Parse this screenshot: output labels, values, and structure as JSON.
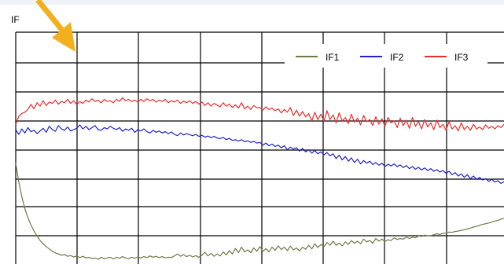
{
  "chart_data": {
    "type": "line",
    "ylabel": "IF",
    "grid": true,
    "legend_position": "top-right",
    "x": [
      0,
      1,
      2,
      3,
      4,
      5,
      6,
      7,
      8,
      9,
      10,
      11,
      12,
      13,
      14,
      15,
      16,
      17,
      18,
      19,
      20,
      21,
      22,
      23,
      24,
      25,
      26,
      27,
      28,
      29,
      30,
      31,
      32,
      33,
      34,
      35,
      36,
      37,
      38,
      39,
      40,
      41,
      42,
      43,
      44,
      45,
      46,
      47,
      48,
      49,
      50,
      51,
      52,
      53,
      54,
      55,
      56,
      57,
      58,
      59,
      60,
      61,
      62,
      63,
      64,
      65,
      66,
      67,
      68,
      69,
      70,
      71,
      72,
      73,
      74,
      75,
      76,
      77,
      78,
      79,
      80,
      81,
      82,
      83,
      84,
      85,
      86,
      87,
      88,
      89,
      90,
      91,
      92,
      93,
      94,
      95,
      96,
      97,
      98,
      99,
      100,
      101,
      102,
      103,
      104,
      105,
      106,
      107,
      108,
      109,
      110,
      111,
      112,
      113,
      114,
      115,
      116,
      117,
      118,
      119,
      120,
      121,
      122,
      123,
      124,
      125,
      126,
      127,
      128,
      129,
      130,
      131,
      132,
      133,
      134,
      135,
      136,
      137,
      138,
      139,
      140,
      141,
      142,
      143,
      144,
      145,
      146,
      147,
      148,
      149,
      150,
      151,
      152,
      153,
      154,
      155,
      156,
      157,
      158,
      159,
      160
    ],
    "series": [
      {
        "name": "IF1",
        "color": "#6b7b46",
        "values": [
          5.6,
          5.05,
          4.6,
          4.25,
          3.98,
          3.76,
          3.58,
          3.43,
          3.3,
          3.2,
          3.12,
          3.05,
          2.98,
          2.93,
          2.9,
          2.86,
          2.88,
          2.83,
          2.85,
          2.81,
          2.84,
          2.79,
          2.83,
          2.78,
          2.8,
          2.76,
          2.78,
          2.74,
          2.8,
          2.76,
          2.78,
          2.8,
          2.75,
          2.8,
          2.77,
          2.82,
          2.78,
          2.76,
          2.8,
          2.77,
          2.81,
          2.78,
          2.82,
          2.79,
          2.84,
          2.8,
          2.83,
          2.79,
          2.82,
          2.78,
          2.8,
          2.79,
          2.84,
          2.9,
          2.83,
          2.88,
          2.82,
          2.86,
          2.81,
          2.85,
          2.8,
          2.86,
          2.95,
          2.84,
          2.92,
          2.83,
          2.9,
          2.84,
          2.96,
          2.87,
          3.0,
          2.9,
          3.06,
          2.94,
          3.1,
          2.96,
          3.02,
          2.94,
          3.08,
          2.98,
          3.12,
          2.98,
          3.06,
          2.96,
          3.1,
          3.01,
          3.14,
          3.03,
          3.1,
          3.0,
          3.13,
          3.02,
          3.08,
          2.99,
          3.1,
          3.04,
          3.16,
          3.05,
          3.2,
          3.09,
          3.18,
          3.12,
          3.24,
          3.16,
          3.28,
          3.16,
          3.22,
          3.14,
          3.26,
          3.18,
          3.3,
          3.22,
          3.28,
          3.2,
          3.34,
          3.26,
          3.3,
          3.22,
          3.36,
          3.28,
          3.34,
          3.27,
          3.32,
          3.3,
          3.38,
          3.33,
          3.36,
          3.34,
          3.4,
          3.36,
          3.4,
          3.38,
          3.44,
          3.42,
          3.46,
          3.44,
          3.45,
          3.47,
          3.5,
          3.48,
          3.51,
          3.52,
          3.55,
          3.54,
          3.57,
          3.58,
          3.6,
          3.62,
          3.64,
          3.67,
          3.7,
          3.72,
          3.75,
          3.78,
          3.8,
          3.82,
          3.85,
          3.88,
          3.9,
          3.93,
          3.96
        ]
      },
      {
        "name": "IF2",
        "color": "#2020cc",
        "values": [
          6.6,
          6.46,
          6.62,
          6.5,
          6.66,
          6.54,
          6.58,
          6.48,
          6.56,
          6.64,
          6.52,
          6.7,
          6.6,
          6.55,
          6.72,
          6.62,
          6.58,
          6.68,
          6.56,
          6.6,
          6.64,
          6.74,
          6.62,
          6.7,
          6.6,
          6.66,
          6.72,
          6.6,
          6.58,
          6.66,
          6.62,
          6.7,
          6.64,
          6.6,
          6.66,
          6.55,
          6.62,
          6.58,
          6.64,
          6.52,
          6.6,
          6.56,
          6.62,
          6.54,
          6.5,
          6.58,
          6.52,
          6.56,
          6.5,
          6.54,
          6.48,
          6.53,
          6.46,
          6.42,
          6.5,
          6.44,
          6.48,
          6.45,
          6.42,
          6.46,
          6.4,
          6.43,
          6.38,
          6.41,
          6.36,
          6.4,
          6.35,
          6.33,
          6.37,
          6.3,
          6.34,
          6.28,
          6.3,
          6.26,
          6.3,
          6.24,
          6.27,
          6.22,
          6.25,
          6.2,
          6.22,
          6.14,
          6.2,
          6.12,
          6.17,
          6.1,
          6.14,
          6.06,
          6.12,
          6.0,
          6.08,
          6.02,
          6.06,
          5.96,
          6.04,
          5.94,
          6.0,
          5.9,
          5.98,
          5.88,
          5.94,
          5.85,
          5.92,
          5.82,
          5.88,
          5.74,
          5.84,
          5.7,
          5.8,
          5.66,
          5.76,
          5.62,
          5.72,
          5.58,
          5.68,
          5.6,
          5.66,
          5.56,
          5.62,
          5.54,
          5.6,
          5.5,
          5.57,
          5.52,
          5.58,
          5.5,
          5.55,
          5.47,
          5.53,
          5.44,
          5.5,
          5.42,
          5.48,
          5.4,
          5.46,
          5.38,
          5.44,
          5.36,
          5.41,
          5.34,
          5.38,
          5.3,
          5.36,
          5.26,
          5.32,
          5.22,
          5.28,
          5.18,
          5.26,
          5.14,
          5.22,
          5.12,
          5.18,
          5.1,
          5.14,
          5.06,
          5.12,
          5.04,
          5.08,
          5.0,
          5.05
        ]
      },
      {
        "name": "IF3",
        "color": "#ee2b2b",
        "values": [
          6.75,
          7.0,
          7.08,
          7.12,
          7.2,
          7.35,
          7.22,
          7.4,
          7.3,
          7.46,
          7.32,
          7.42,
          7.38,
          7.48,
          7.36,
          7.44,
          7.4,
          7.5,
          7.38,
          7.46,
          7.34,
          7.44,
          7.38,
          7.48,
          7.42,
          7.52,
          7.44,
          7.48,
          7.4,
          7.5,
          7.44,
          7.46,
          7.4,
          7.5,
          7.44,
          7.55,
          7.46,
          7.5,
          7.44,
          7.48,
          7.42,
          7.5,
          7.44,
          7.52,
          7.46,
          7.5,
          7.42,
          7.48,
          7.44,
          7.5,
          7.4,
          7.46,
          7.42,
          7.48,
          7.38,
          7.45,
          7.4,
          7.46,
          7.38,
          7.44,
          7.36,
          7.42,
          7.32,
          7.4,
          7.3,
          7.38,
          7.33,
          7.28,
          7.4,
          7.3,
          7.36,
          7.26,
          7.34,
          7.24,
          7.4,
          7.22,
          7.3,
          7.2,
          7.32,
          7.25,
          7.26,
          7.18,
          7.28,
          7.2,
          7.24,
          7.16,
          7.22,
          7.1,
          7.2,
          7.12,
          7.26,
          7.02,
          7.18,
          7.0,
          7.14,
          6.98,
          7.08,
          6.86,
          7.12,
          6.9,
          7.06,
          6.84,
          7.16,
          6.9,
          7.04,
          6.8,
          7.1,
          6.86,
          6.96,
          6.78,
          7.06,
          6.82,
          6.94,
          6.74,
          7.02,
          6.84,
          6.9,
          6.72,
          6.98,
          6.76,
          6.92,
          6.7,
          6.96,
          6.8,
          6.86,
          6.66,
          6.94,
          6.72,
          6.88,
          6.64,
          6.96,
          6.7,
          6.84,
          6.62,
          6.9,
          6.68,
          6.8,
          6.6,
          6.88,
          6.66,
          6.76,
          6.58,
          6.84,
          6.62,
          6.72,
          6.56,
          6.8,
          6.6,
          6.7,
          6.58,
          6.76,
          6.62,
          6.68,
          6.6,
          6.74,
          6.64,
          6.7,
          6.62,
          6.72,
          6.66,
          6.76
        ]
      }
    ],
    "xlim": [
      0,
      160
    ],
    "ylim": [
      2.6,
      9.5
    ]
  },
  "arrow_color": "#f2b01e"
}
